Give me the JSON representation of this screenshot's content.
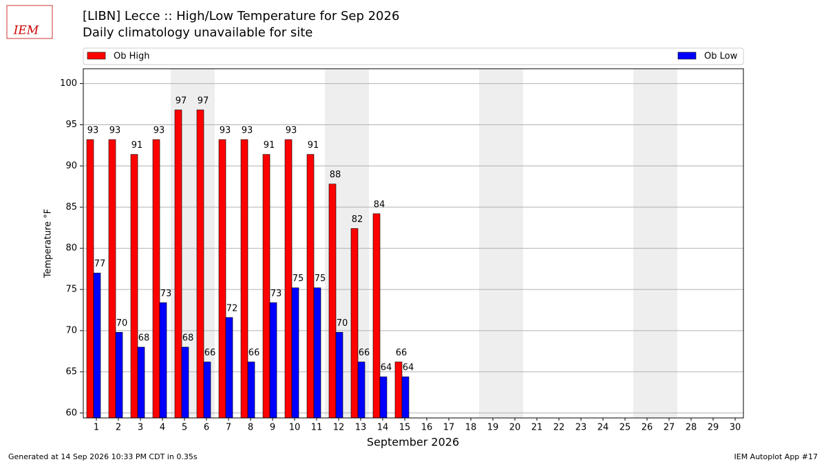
{
  "chart_data": {
    "type": "bar",
    "logo": "IEM",
    "title": "[LIBN] Lecce :: High/Low Temperature for Sep 2026",
    "subtitle": "Daily climatology unavailable for site",
    "x_label": "September 2026",
    "y_label": "Temperature °F",
    "footer_left": "Generated at 14 Sep 2026 10:33 PM CDT in 0.35s",
    "footer_right": "IEM Autoplot App #17",
    "categories": [
      "1",
      "2",
      "3",
      "4",
      "5",
      "6",
      "7",
      "8",
      "9",
      "10",
      "11",
      "12",
      "13",
      "14",
      "15",
      "16",
      "17",
      "18",
      "19",
      "20",
      "21",
      "22",
      "23",
      "24",
      "25",
      "26",
      "27",
      "28",
      "29",
      "30"
    ],
    "shaded_categories": [
      "5",
      "6",
      "12",
      "13",
      "19",
      "20",
      "26",
      "27"
    ],
    "series": [
      {
        "name": "Ob High",
        "color": "#ff0000",
        "values": [
          93.2,
          93.2,
          91.4,
          93.2,
          96.8,
          96.8,
          93.2,
          93.2,
          91.4,
          93.2,
          91.4,
          87.8,
          82.4,
          84.2,
          66.2,
          null,
          null,
          null,
          null,
          null,
          null,
          null,
          null,
          null,
          null,
          null,
          null,
          null,
          null,
          null
        ],
        "value_labels": [
          "93",
          "93",
          "91",
          "93",
          "97",
          "97",
          "93",
          "93",
          "91",
          "93",
          "91",
          "88",
          "82",
          "84",
          "66",
          null,
          null,
          null,
          null,
          null,
          null,
          null,
          null,
          null,
          null,
          null,
          null,
          null,
          null,
          null
        ]
      },
      {
        "name": "Ob Low",
        "color": "#0000ff",
        "values": [
          77,
          69.8,
          68,
          73.4,
          68,
          66.2,
          71.6,
          66.2,
          73.4,
          75.2,
          75.2,
          69.8,
          66.2,
          64.4,
          64.4,
          null,
          null,
          null,
          null,
          null,
          null,
          null,
          null,
          null,
          null,
          null,
          null,
          null,
          null,
          null
        ],
        "value_labels": [
          "77",
          "70",
          "68",
          "73",
          "68",
          "66",
          "72",
          "66",
          "73",
          "75",
          "75",
          "70",
          "66",
          "64",
          "64",
          null,
          null,
          null,
          null,
          null,
          null,
          null,
          null,
          null,
          null,
          null,
          null,
          null,
          null,
          null
        ]
      }
    ],
    "ylim": [
      59.4,
      101.8
    ],
    "yticks": [
      60,
      65,
      70,
      75,
      80,
      85,
      90,
      95,
      100
    ],
    "grid": true
  }
}
